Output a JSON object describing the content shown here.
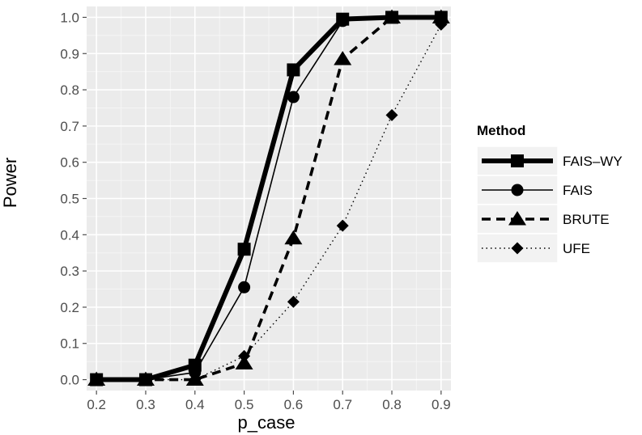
{
  "chart_data": {
    "type": "line",
    "xlabel": "p_case",
    "ylabel": "Power",
    "x": [
      0.2,
      0.3,
      0.4,
      0.5,
      0.6,
      0.7,
      0.8,
      0.9
    ],
    "xlim": [
      0.18,
      0.92
    ],
    "ylim": [
      -0.03,
      1.03
    ],
    "xticks": [
      "0.2",
      "0.3",
      "0.4",
      "0.5",
      "0.6",
      "0.7",
      "0.8",
      "0.9"
    ],
    "yticks": [
      "0.0",
      "0.1",
      "0.2",
      "0.3",
      "0.4",
      "0.5",
      "0.6",
      "0.7",
      "0.8",
      "0.9",
      "1.0"
    ],
    "grid": true,
    "legend": {
      "title": "Method",
      "position": "right"
    },
    "series": [
      {
        "name": "FAIS–WY",
        "marker": "square",
        "line": "solid-thick",
        "values": [
          0.0,
          0.0,
          0.04,
          0.36,
          0.855,
          0.995,
          1.0,
          1.0
        ]
      },
      {
        "name": "FAIS",
        "marker": "circle",
        "line": "solid-thin",
        "values": [
          0.0,
          0.0,
          0.02,
          0.255,
          0.78,
          0.99,
          1.0,
          1.0
        ]
      },
      {
        "name": "BRUTE",
        "marker": "triangle",
        "line": "dashed",
        "values": [
          0.0,
          0.0,
          0.0,
          0.045,
          0.39,
          0.885,
          1.0,
          1.0
        ]
      },
      {
        "name": "UFE",
        "marker": "diamond",
        "line": "dotted",
        "values": [
          0.0,
          0.0,
          0.0,
          0.065,
          0.215,
          0.425,
          0.73,
          0.98
        ]
      }
    ],
    "colors": {
      "panel": "#ebebeb",
      "grid": "#ffffff",
      "line": "#000000"
    }
  }
}
